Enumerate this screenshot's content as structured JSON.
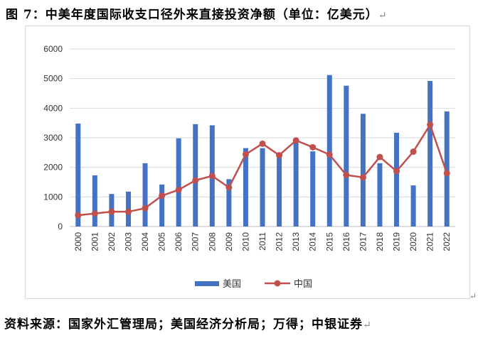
{
  "header": {
    "title": "图 7：中美年度国际收支口径外来直接投资净额（单位：亿美元）",
    "para_mark": "↵"
  },
  "footer": {
    "source": "资料来源：国家外汇管理局；美国经济分析局；万得；中银证券",
    "para_mark": "↵"
  },
  "chart_data": {
    "type": "bar",
    "title": "",
    "xlabel": "",
    "ylabel": "",
    "ylim": [
      0,
      6000
    ],
    "yticks": [
      0,
      1000,
      2000,
      3000,
      4000,
      5000,
      6000
    ],
    "grid": true,
    "legend_position": "bottom",
    "categories": [
      "2000",
      "2001",
      "2002",
      "2003",
      "2004",
      "2005",
      "2006",
      "2007",
      "2008",
      "2009",
      "2010",
      "2011",
      "2012",
      "2013",
      "2014",
      "2015",
      "2016",
      "2017",
      "2018",
      "2019",
      "2020",
      "2021",
      "2022"
    ],
    "series": [
      {
        "name": "美国",
        "type": "bar",
        "color": "#4472C4",
        "values": [
          3480,
          1730,
          1100,
          1180,
          2140,
          1420,
          2980,
          3460,
          3420,
          1600,
          2650,
          2650,
          2480,
          2900,
          2540,
          5120,
          4760,
          3810,
          2140,
          3170,
          1390,
          4920,
          3890
        ]
      },
      {
        "name": "中国",
        "type": "line",
        "color": "#C0504D",
        "values": [
          380,
          440,
          500,
          500,
          620,
          1040,
          1240,
          1560,
          1710,
          1320,
          2440,
          2800,
          2410,
          2910,
          2680,
          2430,
          1740,
          1660,
          2350,
          1870,
          2530,
          3440,
          1800
        ]
      }
    ]
  }
}
